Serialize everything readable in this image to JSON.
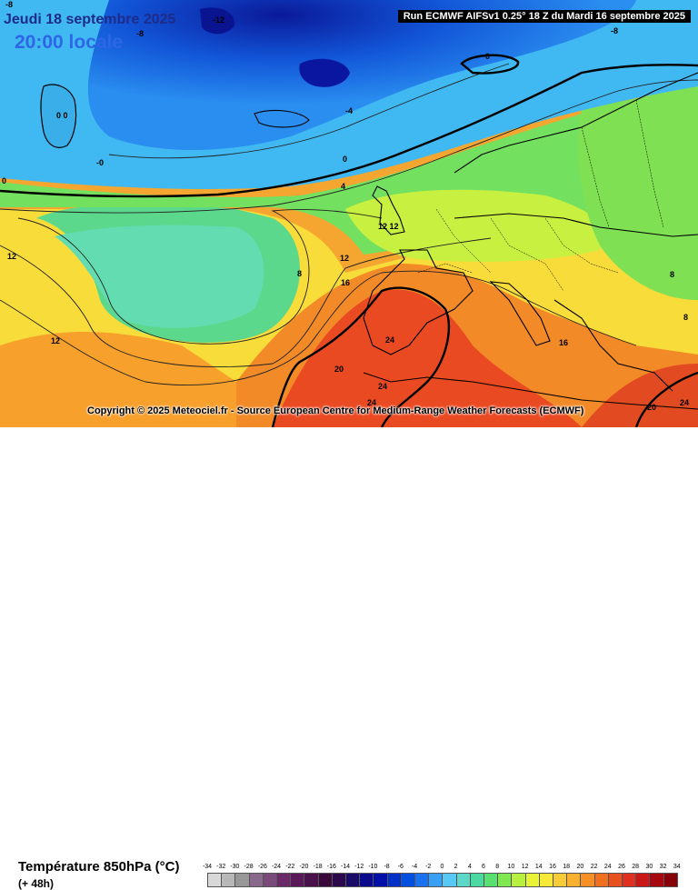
{
  "header": {
    "date": "Jeudi 18 septembre 2025",
    "time": "20:00 locale",
    "run": "Run ECMWF AIFSv1 0.25° 18 Z du Mardi 16 septembre 2025"
  },
  "copyright": "Copyright © 2025 Meteociel.fr - Source European Centre for Medium-Range Weather Forecasts (ECMWF)",
  "parameter": {
    "title": "Température 850hPa (°C)",
    "lead": "(+ 48h)"
  },
  "legend": {
    "values": [
      -34,
      -32,
      -30,
      -28,
      -26,
      -24,
      -22,
      -20,
      -18,
      -16,
      -14,
      -12,
      -10,
      -8,
      -6,
      -4,
      -2,
      0,
      2,
      4,
      6,
      8,
      10,
      12,
      14,
      16,
      18,
      20,
      22,
      24,
      26,
      28,
      30,
      32,
      34
    ],
    "colors": [
      "#d8d8d8",
      "#b8b8b8",
      "#989898",
      "#8a6a8a",
      "#7a4a7a",
      "#6a2a6a",
      "#5a1a5a",
      "#4a104a",
      "#3a083a",
      "#2a0a4a",
      "#1a0a6a",
      "#0a0a8a",
      "#0010a8",
      "#0030c8",
      "#0050e0",
      "#1a72f2",
      "#3aa0f6",
      "#58c8f4",
      "#5cd8c8",
      "#4cd8a0",
      "#58e070",
      "#80e850",
      "#b8f040",
      "#e8f438",
      "#f8e838",
      "#f8cc38",
      "#f8b030",
      "#f89028",
      "#f07020",
      "#e85020",
      "#e03020",
      "#c81818",
      "#a80810",
      "#880008"
    ]
  },
  "map_labels": [
    "-8",
    "-12",
    "-8",
    "-8",
    "0",
    "0 0",
    "-0",
    "0",
    "-4",
    "0",
    "4",
    "12 12",
    "12",
    "8",
    "16",
    "12",
    "12",
    "8",
    "8",
    "16",
    "24",
    "20",
    "24",
    "24",
    "20",
    "24"
  ]
}
